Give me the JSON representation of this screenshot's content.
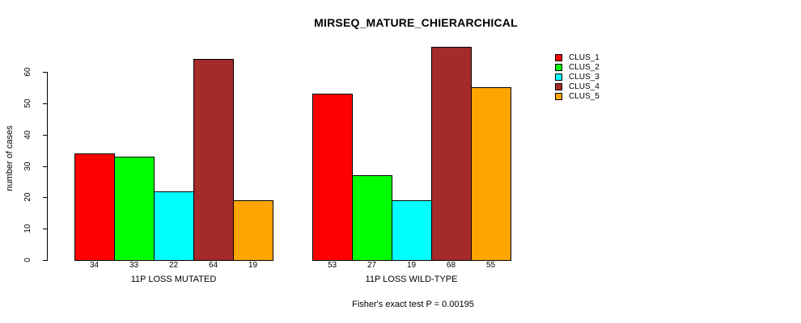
{
  "chart_data": {
    "type": "bar",
    "title": "MIRSEQ_MATURE_CHIERARCHICAL",
    "ylabel": "number of cases",
    "xlabel": "",
    "ylim": [
      0,
      60
    ],
    "yticks": [
      0,
      10,
      20,
      30,
      40,
      50,
      60
    ],
    "grid": false,
    "legend_position": "right",
    "legend_entries": [
      "CLUS_1",
      "CLUS_2",
      "CLUS_3",
      "CLUS_4",
      "CLUS_5"
    ],
    "series_colors": [
      "#FF0000",
      "#00FF00",
      "#00FFFF",
      "#A52A2A",
      "#FFA500"
    ],
    "categories": [
      "11P LOSS MUTATED",
      "11P LOSS WILD-TYPE"
    ],
    "groups": [
      {
        "label": "11P LOSS MUTATED",
        "values": [
          34,
          33,
          22,
          64,
          19
        ]
      },
      {
        "label": "11P LOSS WILD-TYPE",
        "values": [
          53,
          27,
          19,
          68,
          55
        ]
      }
    ],
    "series": [
      {
        "name": "CLUS_1",
        "values": [
          34,
          53
        ]
      },
      {
        "name": "CLUS_2",
        "values": [
          33,
          27
        ]
      },
      {
        "name": "CLUS_3",
        "values": [
          22,
          19
        ]
      },
      {
        "name": "CLUS_4",
        "values": [
          64,
          68
        ]
      },
      {
        "name": "CLUS_5",
        "values": [
          19,
          55
        ]
      }
    ],
    "bar_value_labels_shown": true,
    "annotation": "Fisher's exact test P = 0.00195",
    "axis_color": "#000000",
    "text_color": "#000000",
    "background_color": "#FFFFFF"
  }
}
